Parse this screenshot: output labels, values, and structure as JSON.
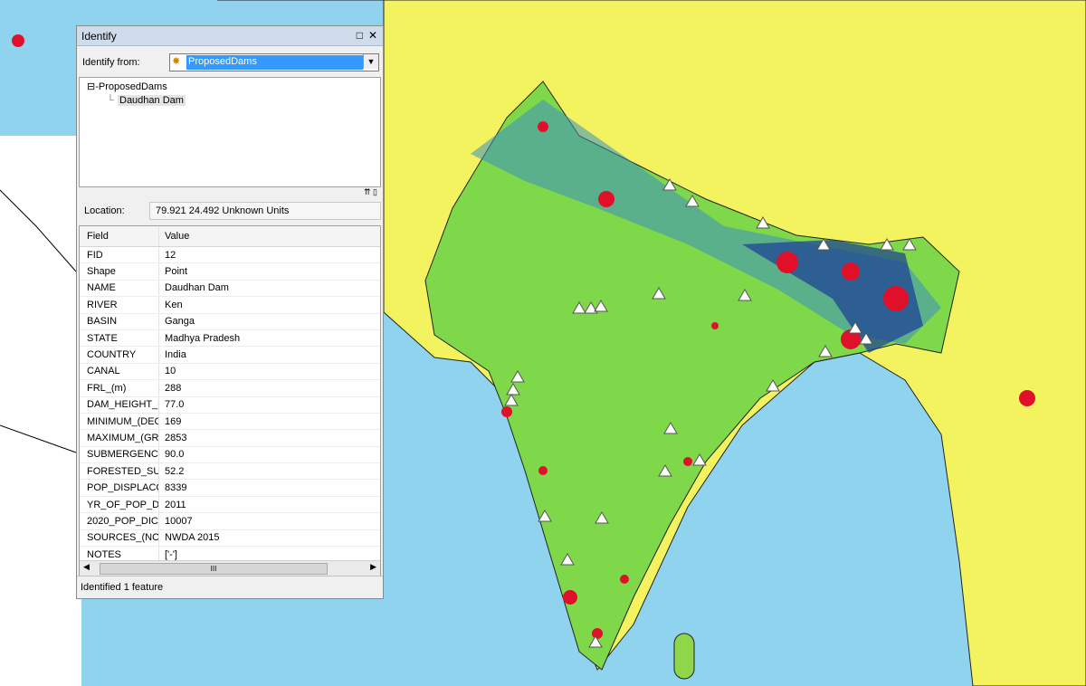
{
  "window": {
    "title": "Identify",
    "identify_from_label": "Identify from:",
    "identify_from_value": "ProposedDams",
    "tree": {
      "layer": "ProposedDams",
      "feature": "Daudhan Dam"
    },
    "location_label": "Location:",
    "location_value": "79.921  24.492 Unknown Units",
    "table": {
      "headers": [
        "Field",
        "Value"
      ],
      "rows": [
        [
          "FID",
          "12"
        ],
        [
          "Shape",
          "Point"
        ],
        [
          "NAME",
          "Daudhan Dam"
        ],
        [
          "RIVER",
          "Ken"
        ],
        [
          "BASIN",
          "Ganga"
        ],
        [
          "STATE",
          "Madhya Pradesh"
        ],
        [
          "COUNTRY",
          "India"
        ],
        [
          "CANAL",
          "10"
        ],
        [
          "FRL_(m)",
          "288"
        ],
        [
          "DAM_HEIGHT_C",
          "77.0"
        ],
        [
          "MINIMUM_(DEC",
          "169"
        ],
        [
          "MAXIMUM_(GRC",
          "2853"
        ],
        [
          "SUBMERGENCEC",
          "90.0"
        ],
        [
          "FORESTED_SUC",
          "52.2"
        ],
        [
          "POP_DISPLACC",
          "8339"
        ],
        [
          "YR_OF_POP_DC",
          "2011"
        ],
        [
          "2020_POP_DIC",
          "10007"
        ],
        [
          "SOURCES_(NOC",
          "NWDA 2015"
        ],
        [
          "NOTES",
          "['-']"
        ]
      ]
    },
    "scroll_grip": "III",
    "status": "Identified 1 feature"
  }
}
